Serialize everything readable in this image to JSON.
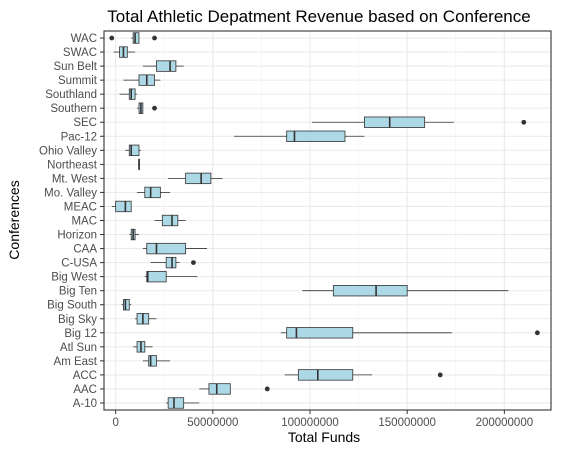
{
  "chart_data": {
    "type": "boxplot",
    "orientation": "horizontal",
    "title": "Total Athletic Depatment Revenue based on Conference",
    "xlabel": "Total Funds",
    "ylabel": "Conferences",
    "xlim": [
      -6000000,
      224000000
    ],
    "xticks": [
      0,
      50000000,
      100000000,
      150000000,
      200000000
    ],
    "xtick_labels": [
      "0",
      "50000000",
      "100000000",
      "150000000",
      "200000000"
    ],
    "grid": true,
    "box_fill": "#ADD8E6",
    "line_color": "#333333",
    "categories": [
      "A-10",
      "AAC",
      "ACC",
      "Am East",
      "Atl Sun",
      "Big 12",
      "Big Sky",
      "Big South",
      "Big Ten",
      "Big West",
      "C-USA",
      "CAA",
      "Horizon",
      "MAC",
      "MEAC",
      "Mo. Valley",
      "Mt. West",
      "Northeast",
      "Ohio Valley",
      "Pac-12",
      "SEC",
      "Southern",
      "Southland",
      "Summit",
      "Sun Belt",
      "SWAC",
      "WAC"
    ],
    "boxes": [
      {
        "name": "A-10",
        "whisker_low": 26000000,
        "q1": 27000000,
        "median": 30000000,
        "q3": 35000000,
        "whisker_high": 43000000,
        "outliers": []
      },
      {
        "name": "AAC",
        "whisker_low": 43000000,
        "q1": 48000000,
        "median": 52000000,
        "q3": 59000000,
        "whisker_high": 59000000,
        "outliers": [
          78000000
        ]
      },
      {
        "name": "ACC",
        "whisker_low": 87000000,
        "q1": 94000000,
        "median": 104000000,
        "q3": 122000000,
        "whisker_high": 132000000,
        "outliers": [
          167000000
        ]
      },
      {
        "name": "Am East",
        "whisker_low": 14000000,
        "q1": 17000000,
        "median": 18000000,
        "q3": 21000000,
        "whisker_high": 28000000,
        "outliers": []
      },
      {
        "name": "Atl Sun",
        "whisker_low": 9000000,
        "q1": 11000000,
        "median": 13000000,
        "q3": 15000000,
        "whisker_high": 19000000,
        "outliers": []
      },
      {
        "name": "Big 12",
        "whisker_low": 85000000,
        "q1": 88000000,
        "median": 93000000,
        "q3": 122000000,
        "whisker_high": 173000000,
        "outliers": [
          217000000
        ]
      },
      {
        "name": "Big Sky",
        "whisker_low": 10000000,
        "q1": 11000000,
        "median": 14000000,
        "q3": 17000000,
        "whisker_high": 21000000,
        "outliers": []
      },
      {
        "name": "Big South",
        "whisker_low": 3000000,
        "q1": 4000000,
        "median": 5000000,
        "q3": 7000000,
        "whisker_high": 8000000,
        "outliers": []
      },
      {
        "name": "Big Ten",
        "whisker_low": 96000000,
        "q1": 112000000,
        "median": 134000000,
        "q3": 150000000,
        "whisker_high": 202000000,
        "outliers": []
      },
      {
        "name": "Big West",
        "whisker_low": 15000000,
        "q1": 16000000,
        "median": 16500000,
        "q3": 26000000,
        "whisker_high": 42000000,
        "outliers": []
      },
      {
        "name": "C-USA",
        "whisker_low": 18000000,
        "q1": 26000000,
        "median": 29000000,
        "q3": 31000000,
        "whisker_high": 33000000,
        "outliers": [
          40000000
        ]
      },
      {
        "name": "CAA",
        "whisker_low": 14000000,
        "q1": 16000000,
        "median": 21000000,
        "q3": 36000000,
        "whisker_high": 47000000,
        "outliers": []
      },
      {
        "name": "Horizon",
        "whisker_low": 7000000,
        "q1": 8000000,
        "median": 9000000,
        "q3": 10000000,
        "whisker_high": 12000000,
        "outliers": []
      },
      {
        "name": "MAC",
        "whisker_low": 20000000,
        "q1": 24000000,
        "median": 29000000,
        "q3": 32000000,
        "whisker_high": 36000000,
        "outliers": []
      },
      {
        "name": "MEAC",
        "whisker_low": -2000000,
        "q1": 0,
        "median": 5000000,
        "q3": 8000000,
        "whisker_high": 8000000,
        "outliers": []
      },
      {
        "name": "Mo. Valley",
        "whisker_low": 11000000,
        "q1": 15000000,
        "median": 18000000,
        "q3": 23000000,
        "whisker_high": 28000000,
        "outliers": []
      },
      {
        "name": "Mt. West",
        "whisker_low": 27000000,
        "q1": 36000000,
        "median": 44000000,
        "q3": 49000000,
        "whisker_high": 55000000,
        "outliers": []
      },
      {
        "name": "Northeast",
        "whisker_low": 12000000,
        "q1": 12000000,
        "median": 12000000,
        "q3": 12000000,
        "whisker_high": 12000000,
        "outliers": []
      },
      {
        "name": "Ohio Valley",
        "whisker_low": 5000000,
        "q1": 7000000,
        "median": 8000000,
        "q3": 12000000,
        "whisker_high": 13000000,
        "outliers": []
      },
      {
        "name": "Pac-12",
        "whisker_low": 61000000,
        "q1": 88000000,
        "median": 92000000,
        "q3": 118000000,
        "whisker_high": 128000000,
        "outliers": []
      },
      {
        "name": "SEC",
        "whisker_low": 101000000,
        "q1": 128000000,
        "median": 141000000,
        "q3": 159000000,
        "whisker_high": 174000000,
        "outliers": [
          210000000
        ]
      },
      {
        "name": "Southern",
        "whisker_low": 11000000,
        "q1": 12000000,
        "median": 13000000,
        "q3": 14000000,
        "whisker_high": 14000000,
        "outliers": [
          20000000
        ]
      },
      {
        "name": "Southland",
        "whisker_low": 2000000,
        "q1": 7000000,
        "median": 8000000,
        "q3": 10000000,
        "whisker_high": 11000000,
        "outliers": []
      },
      {
        "name": "Summit",
        "whisker_low": 4000000,
        "q1": 12000000,
        "median": 16000000,
        "q3": 20000000,
        "whisker_high": 23000000,
        "outliers": []
      },
      {
        "name": "Sun Belt",
        "whisker_low": 14000000,
        "q1": 21000000,
        "median": 28000000,
        "q3": 31000000,
        "whisker_high": 35000000,
        "outliers": []
      },
      {
        "name": "SWAC",
        "whisker_low": -1000000,
        "q1": 2000000,
        "median": 4000000,
        "q3": 6000000,
        "whisker_high": 10000000,
        "outliers": []
      },
      {
        "name": "WAC",
        "whisker_low": 8000000,
        "q1": 9000000,
        "median": 10000000,
        "q3": 12000000,
        "whisker_high": 12000000,
        "outliers": [
          -2000000,
          20000000
        ]
      }
    ]
  }
}
